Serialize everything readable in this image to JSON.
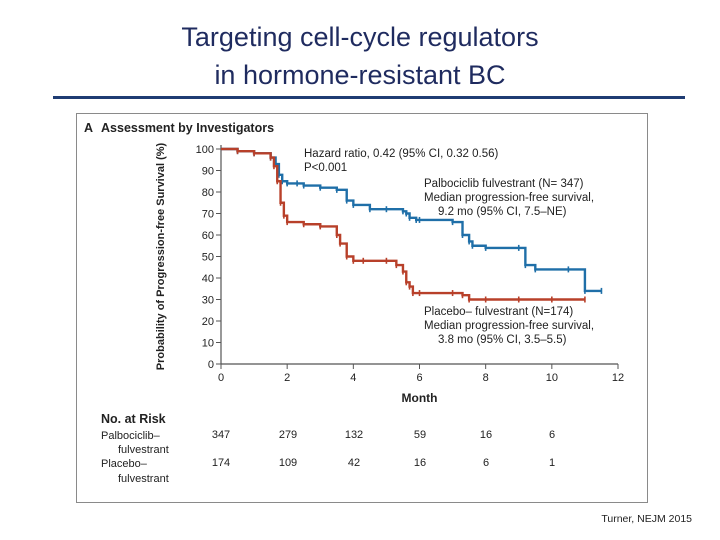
{
  "slide": {
    "title_line1": "Targeting cell-cycle regulators",
    "title_line2": "in hormone-resistant BC",
    "citation": "Turner, NEJM 2015"
  },
  "panel": {
    "letter": "A",
    "title": "Assessment by Investigators"
  },
  "colors": {
    "title": "#1f2b5f",
    "rule": "#1f3c73",
    "palbociclib": "#1f6fa8",
    "placebo": "#b8402a"
  },
  "chart_data": {
    "type": "line",
    "xlabel": "Month",
    "ylabel": "Probability of Progression-free Survival (%)",
    "xlim": [
      0,
      12
    ],
    "ylim": [
      0,
      100
    ],
    "xticks": [
      0,
      2,
      4,
      6,
      8,
      10,
      12
    ],
    "yticks": [
      0,
      10,
      20,
      30,
      40,
      50,
      60,
      70,
      80,
      90,
      100
    ],
    "x_tick_labels": [
      "0",
      "2",
      "4",
      "6",
      "8",
      "10",
      "12"
    ],
    "y_tick_labels": [
      "0",
      "10",
      "20",
      "30",
      "40",
      "50",
      "60",
      "70",
      "80",
      "90",
      "100"
    ],
    "grid": false,
    "step": true,
    "series": [
      {
        "name": "Palbociclib–fulvestrant (N=347)",
        "color": "#1f6fa8",
        "x": [
          0,
          0.5,
          1.0,
          1.5,
          1.65,
          1.75,
          1.85,
          2.0,
          2.3,
          2.5,
          3.0,
          3.5,
          3.8,
          4.0,
          4.5,
          5.0,
          5.5,
          5.6,
          5.7,
          5.9,
          6.0,
          7.0,
          7.3,
          7.5,
          7.6,
          8.0,
          9.0,
          9.2,
          9.5,
          10.5,
          11.0,
          11.5
        ],
        "y": [
          100,
          99,
          98,
          96,
          93,
          88,
          85,
          84,
          84,
          83,
          82,
          81,
          76,
          74,
          72,
          72,
          71,
          70,
          68,
          67,
          67,
          66,
          60,
          57,
          55,
          54,
          54,
          46,
          44,
          44,
          34,
          34
        ]
      },
      {
        "name": "Placebo–fulvestrant (N=174)",
        "color": "#b8402a",
        "x": [
          0,
          0.5,
          1.0,
          1.5,
          1.6,
          1.7,
          1.8,
          1.9,
          2.0,
          2.5,
          3.0,
          3.5,
          3.6,
          3.8,
          4.0,
          4.3,
          5.0,
          5.3,
          5.5,
          5.6,
          5.7,
          5.8,
          6.0,
          7.0,
          7.3,
          7.5,
          8.0,
          9.0,
          10.0,
          11.0
        ],
        "y": [
          100,
          99,
          98,
          96,
          92,
          85,
          75,
          69,
          66,
          65,
          64,
          60,
          56,
          50,
          48,
          48,
          48,
          46,
          43,
          38,
          36,
          33,
          33,
          33,
          32,
          30,
          30,
          30,
          30,
          30
        ]
      }
    ],
    "annotations": {
      "hazard_line1": "Hazard ratio, 0.42 (95% CI, 0.32  0.56)",
      "hazard_line2": "P<0.001",
      "palbo_line1": "Palbociclib  fulvestrant (N= 347)",
      "palbo_line2": "Median progression-free survival,",
      "palbo_line3": "9.2 mo (95% CI, 7.5–NE)",
      "placebo_line1": "Placebo– fulvestrant (N=174)",
      "placebo_line2": "Median progression-free survival,",
      "placebo_line3": "3.8 mo (95% CI, 3.5–5.5)"
    },
    "risk_table": {
      "title": "No. at Risk",
      "months": [
        0,
        2,
        4,
        6,
        8,
        10
      ],
      "rows": [
        {
          "label_line1": "Palbociclib–",
          "label_line2": "fulvestrant",
          "values": [
            "347",
            "279",
            "132",
            "59",
            "16",
            "6"
          ]
        },
        {
          "label_line1": "Placebo–",
          "label_line2": "fulvestrant",
          "values": [
            "174",
            "109",
            "42",
            "16",
            "6",
            "1"
          ]
        }
      ]
    }
  }
}
